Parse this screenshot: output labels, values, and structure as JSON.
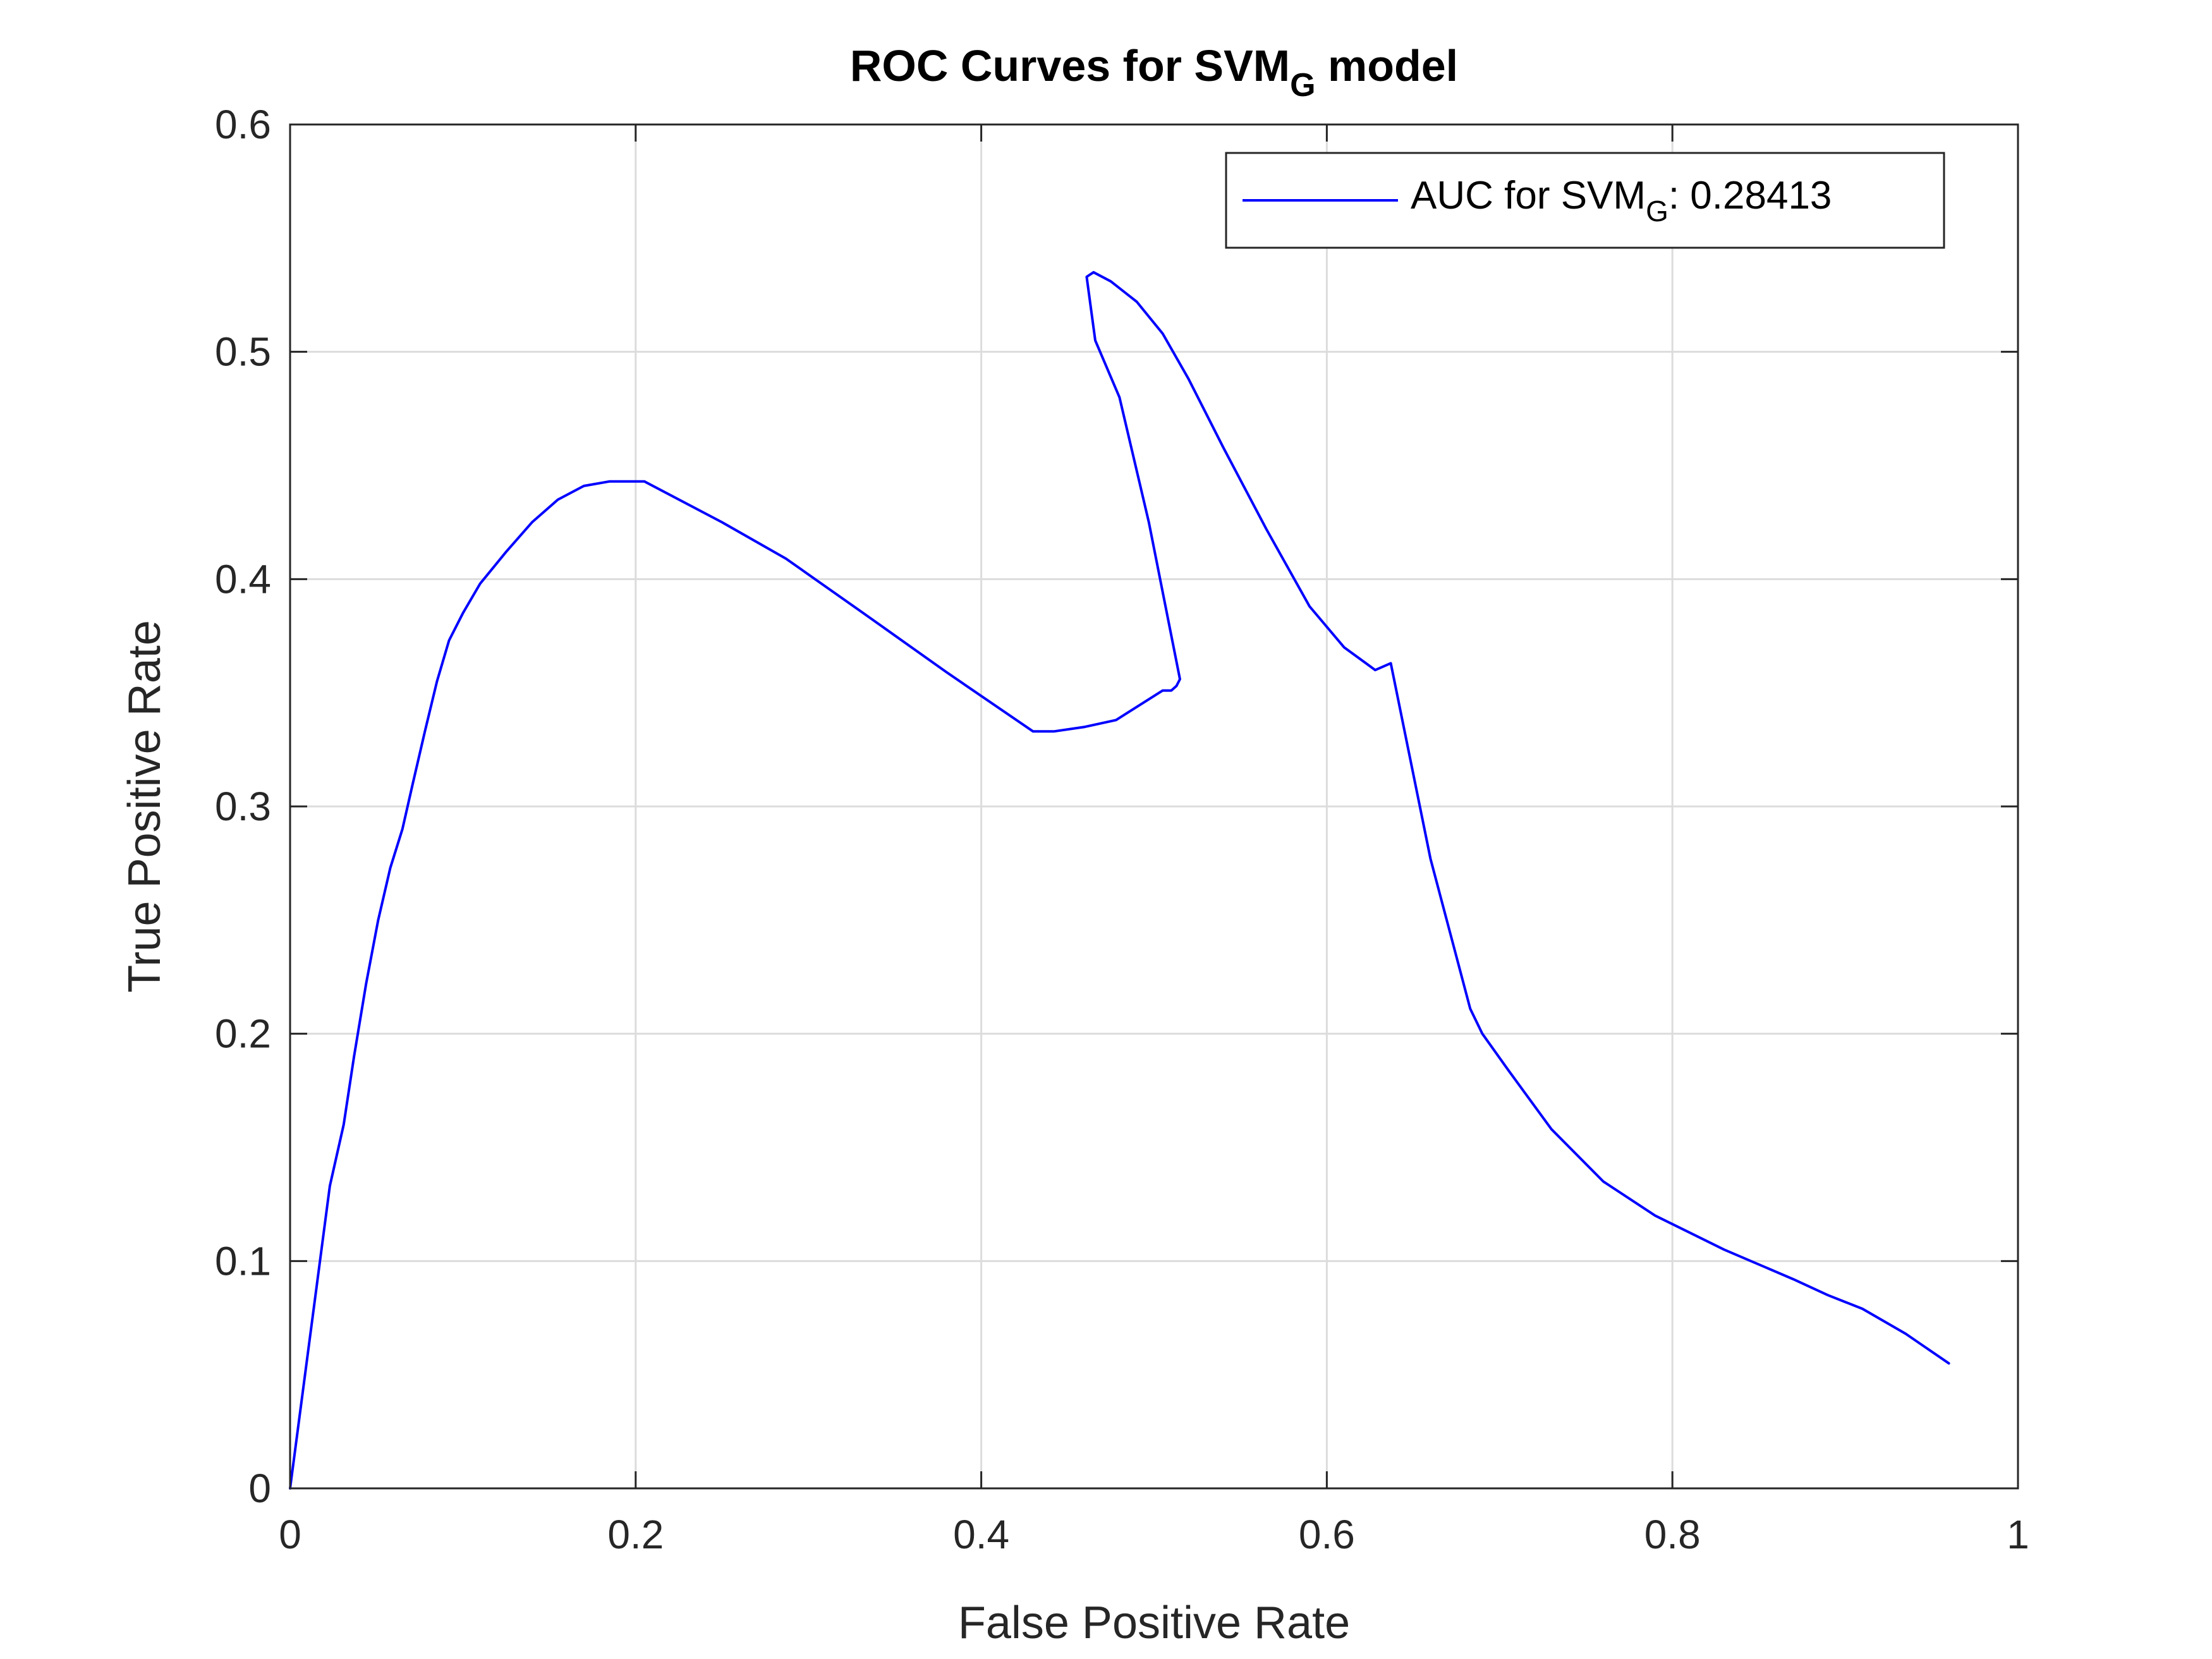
{
  "chart_data": {
    "type": "line",
    "title": {
      "main": "ROC Curves for SVM",
      "subscript": "G",
      "suffix": " model"
    },
    "xlabel": "False Positive Rate",
    "ylabel": "True Positive Rate",
    "xlim": [
      0,
      1
    ],
    "ylim": [
      0,
      0.6
    ],
    "xticks": [
      0,
      0.2,
      0.4,
      0.6,
      0.8,
      1
    ],
    "xtick_labels": [
      "0",
      "0.2",
      "0.4",
      "0.6",
      "0.8",
      "1"
    ],
    "yticks": [
      0,
      0.1,
      0.2,
      0.3,
      0.4,
      0.5,
      0.6
    ],
    "ytick_labels": [
      "0",
      "0.1",
      "0.2",
      "0.3",
      "0.4",
      "0.5",
      "0.6"
    ],
    "grid": true,
    "legend_position": "top-right",
    "series": [
      {
        "name": {
          "prefix": "AUC for SVM",
          "subscript": "G",
          "suffix": ": 0.28413"
        },
        "color": "#0000ff",
        "x": [
          0,
          0.023,
          0.031,
          0.037,
          0.044,
          0.051,
          0.058,
          0.065,
          0.071,
          0.078,
          0.085,
          0.092,
          0.1,
          0.11,
          0.125,
          0.14,
          0.155,
          0.17,
          0.185,
          0.205,
          0.25,
          0.287,
          0.33,
          0.38,
          0.43,
          0.442,
          0.46,
          0.478,
          0.505,
          0.51,
          0.513,
          0.515,
          0.497,
          0.48,
          0.466,
          0.461,
          0.465,
          0.475,
          0.49,
          0.505,
          0.52,
          0.54,
          0.565,
          0.59,
          0.61,
          0.628,
          0.637,
          0.66,
          0.683,
          0.69,
          0.705,
          0.73,
          0.76,
          0.79,
          0.83,
          0.87,
          0.89,
          0.91,
          0.935,
          0.96
        ],
        "y": [
          0,
          0.133,
          0.16,
          0.19,
          0.222,
          0.25,
          0.273,
          0.29,
          0.31,
          0.333,
          0.355,
          0.373,
          0.385,
          0.398,
          0.412,
          0.425,
          0.435,
          0.441,
          0.443,
          0.443,
          0.425,
          0.409,
          0.386,
          0.359,
          0.333,
          0.333,
          0.335,
          0.338,
          0.351,
          0.351,
          0.353,
          0.356,
          0.425,
          0.48,
          0.505,
          0.533,
          0.535,
          0.531,
          0.522,
          0.508,
          0.488,
          0.458,
          0.422,
          0.388,
          0.37,
          0.36,
          0.363,
          0.277,
          0.211,
          0.2,
          0.184,
          0.158,
          0.135,
          0.12,
          0.105,
          0.092,
          0.085,
          0.079,
          0.068,
          0.055
        ]
      }
    ]
  }
}
